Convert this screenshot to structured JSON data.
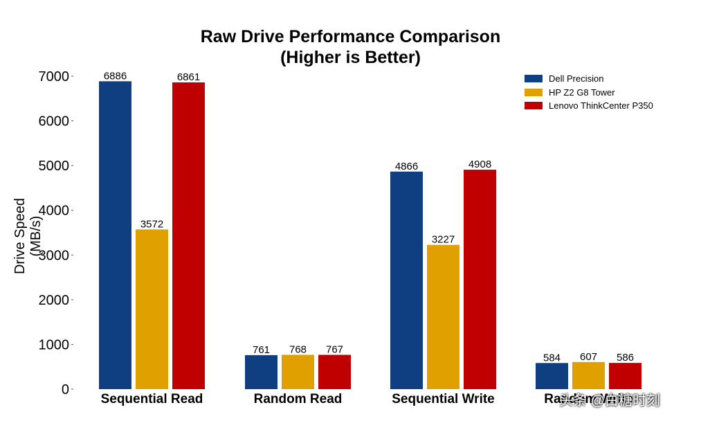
{
  "chart_data": {
    "type": "bar",
    "title_lines": [
      "Raw Drive Performance Comparison",
      "(Higher is Better)"
    ],
    "xlabel": "",
    "ylabel": "Drive Speed (MB/s)",
    "ylim": [
      0,
      7000
    ],
    "yticks": [
      0,
      1000,
      2000,
      3000,
      4000,
      5000,
      6000,
      7000
    ],
    "categories": [
      "Sequential Read",
      "Random Read",
      "Sequential Write",
      "Random Write"
    ],
    "series": [
      {
        "name": "Dell Precision",
        "color": "#0f3f80",
        "values": [
          6886,
          761,
          4866,
          584
        ]
      },
      {
        "name": "HP Z2 G8 Tower",
        "color": "#e0a000",
        "values": [
          3572,
          768,
          3227,
          607
        ]
      },
      {
        "name": "Lenovo ThinkCenter P350",
        "color": "#c00000",
        "values": [
          6861,
          767,
          4908,
          586
        ]
      }
    ],
    "grid": false,
    "legend_position": "top-right"
  },
  "watermark": "头条 @白糖时刻"
}
